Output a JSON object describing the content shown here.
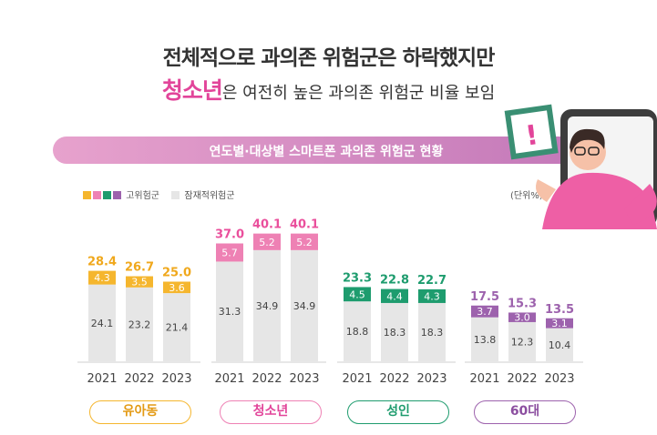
{
  "headline": {
    "line1": "전체적으로 과의존 위험군은 하락했지만",
    "line2_accent": "청소년",
    "line2_rest": "은 여전히 높은 과의존 위험군 비율 보임"
  },
  "banner": {
    "title": "연도별·대상별 스마트폰 과의존 위험군 현황"
  },
  "legend": {
    "high_risk": "고위험군",
    "potential_risk": "잠재적위험군"
  },
  "unit": "(단위%)",
  "illustration": {
    "sign": "!"
  },
  "colors": {
    "youth": "#f5b62e",
    "teen": "#ee81b4",
    "adult": "#1e9c6e",
    "sixties": "#9d62ad",
    "base": "#e6e6e6"
  },
  "chart_data": {
    "type": "bar",
    "stacked": true,
    "years": [
      "2021",
      "2022",
      "2023"
    ],
    "groups": [
      {
        "name": "유아동",
        "potential": [
          24.1,
          23.2,
          21.4
        ],
        "high": [
          4.3,
          3.5,
          3.6
        ],
        "total": [
          "28.4",
          "26.7",
          "25.0"
        ]
      },
      {
        "name": "청소년",
        "potential": [
          31.3,
          34.9,
          34.9
        ],
        "high": [
          5.7,
          5.2,
          5.2
        ],
        "total": [
          "37.0",
          "40.1",
          "40.1"
        ]
      },
      {
        "name": "성인",
        "potential": [
          18.8,
          18.3,
          18.3
        ],
        "high": [
          4.5,
          4.4,
          4.3
        ],
        "total": [
          "23.3",
          "22.8",
          "22.7"
        ]
      },
      {
        "name": "60대",
        "potential": [
          13.8,
          12.3,
          10.4
        ],
        "high": [
          3.7,
          3.0,
          3.1
        ],
        "total": [
          "17.5",
          "15.3",
          "13.5"
        ]
      }
    ]
  }
}
